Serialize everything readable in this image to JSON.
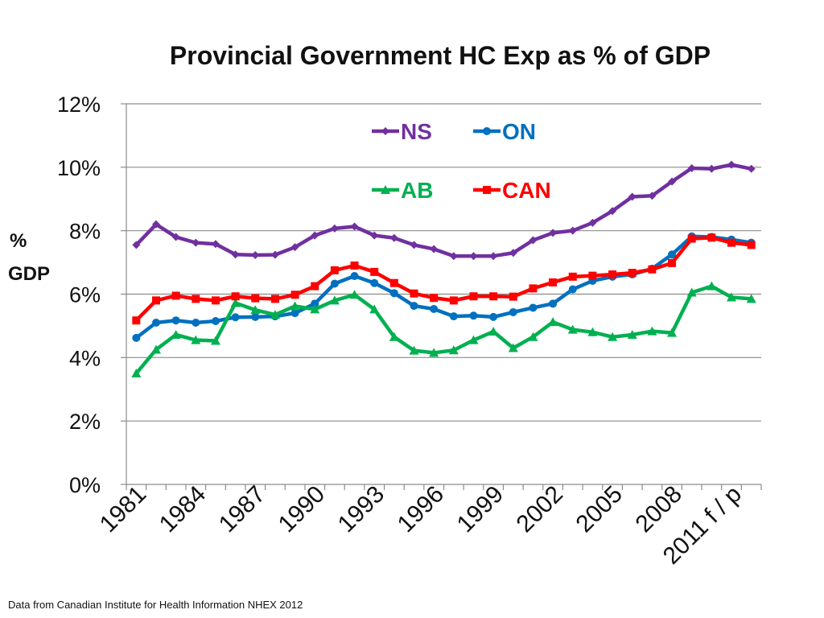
{
  "chart_data": {
    "type": "line",
    "title": "Provincial Government HC Exp as % of GDP",
    "ylabel_line1": "%",
    "ylabel_line2": "GDP",
    "xlabel": "",
    "ylim": [
      0,
      12
    ],
    "y_ticks": [
      {
        "value": 0,
        "label": "0%"
      },
      {
        "value": 2,
        "label": "2%"
      },
      {
        "value": 4,
        "label": "4%"
      },
      {
        "value": 6,
        "label": "6%"
      },
      {
        "value": 8,
        "label": "8%"
      },
      {
        "value": 10,
        "label": "10%"
      },
      {
        "value": 12,
        "label": "12%"
      }
    ],
    "x": [
      1981,
      1982,
      1983,
      1984,
      1985,
      1986,
      1987,
      1988,
      1989,
      1990,
      1991,
      1992,
      1993,
      1994,
      1995,
      1996,
      1997,
      1998,
      1999,
      2000,
      2001,
      2002,
      2003,
      2004,
      2005,
      2006,
      2007,
      2008,
      2009,
      2010,
      2011,
      2012
    ],
    "x_tick_labels": [
      {
        "index": 0,
        "label": "1981"
      },
      {
        "index": 3,
        "label": "1984"
      },
      {
        "index": 6,
        "label": "1987"
      },
      {
        "index": 9,
        "label": "1990"
      },
      {
        "index": 12,
        "label": "1993"
      },
      {
        "index": 15,
        "label": "1996"
      },
      {
        "index": 18,
        "label": "1999"
      },
      {
        "index": 21,
        "label": "2002"
      },
      {
        "index": 24,
        "label": "2005"
      },
      {
        "index": 27,
        "label": "2008"
      },
      {
        "index": 30,
        "label": "2011 f / p"
      }
    ],
    "series": [
      {
        "name": "NS",
        "color": "#7030a0",
        "marker": "diamond",
        "values": [
          7.55,
          8.2,
          7.8,
          7.62,
          7.58,
          7.25,
          7.23,
          7.24,
          7.48,
          7.85,
          8.07,
          8.13,
          7.85,
          7.77,
          7.55,
          7.42,
          7.2,
          7.2,
          7.2,
          7.3,
          7.7,
          7.93,
          8.0,
          8.25,
          8.62,
          9.07,
          9.1,
          9.55,
          9.97,
          9.95,
          10.08,
          9.95
        ]
      },
      {
        "name": "ON",
        "color": "#0070c0",
        "marker": "circle",
        "values": [
          4.62,
          5.1,
          5.17,
          5.1,
          5.15,
          5.27,
          5.28,
          5.3,
          5.4,
          5.7,
          6.33,
          6.57,
          6.35,
          6.03,
          5.63,
          5.53,
          5.3,
          5.32,
          5.28,
          5.43,
          5.57,
          5.7,
          6.15,
          6.42,
          6.55,
          6.62,
          6.8,
          7.25,
          7.82,
          7.8,
          7.72,
          7.62
        ]
      },
      {
        "name": "AB",
        "color": "#00b050",
        "marker": "triangle",
        "values": [
          3.5,
          4.25,
          4.72,
          4.55,
          4.53,
          5.72,
          5.5,
          5.35,
          5.62,
          5.52,
          5.8,
          5.98,
          5.52,
          4.65,
          4.22,
          4.15,
          4.23,
          4.55,
          4.82,
          4.3,
          4.65,
          5.12,
          4.88,
          4.8,
          4.65,
          4.72,
          4.83,
          4.78,
          6.05,
          6.25,
          5.9,
          5.85
        ]
      },
      {
        "name": "CAN",
        "color": "#ff0000",
        "marker": "square",
        "values": [
          5.17,
          5.8,
          5.95,
          5.85,
          5.8,
          5.93,
          5.87,
          5.85,
          5.98,
          6.25,
          6.75,
          6.9,
          6.7,
          6.35,
          6.02,
          5.88,
          5.8,
          5.93,
          5.93,
          5.92,
          6.18,
          6.37,
          6.55,
          6.58,
          6.62,
          6.67,
          6.78,
          6.98,
          7.75,
          7.78,
          7.62,
          7.55
        ]
      }
    ],
    "legend_position": "top-center-inside"
  },
  "source_note": "Data from Canadian Institute for Health Information NHEX 2012"
}
